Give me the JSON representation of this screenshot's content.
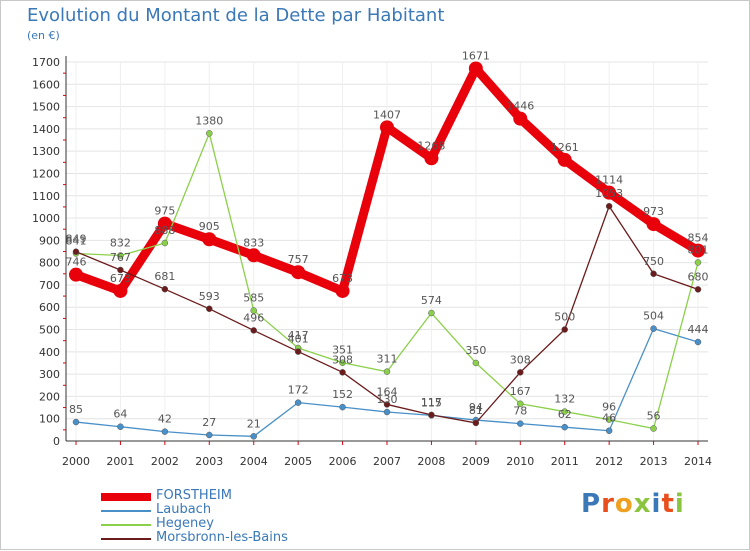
{
  "title": "Evolution du Montant de la Dette par Habitant",
  "unit": "(en €)",
  "logo": {
    "text": "Proxiti",
    "colors": [
      "#3a78b8",
      "#e94f1d",
      "#f0a020",
      "#8bc53f",
      "#3a78b8",
      "#e94f1d",
      "#8bc53f"
    ]
  },
  "chart_data": {
    "type": "line",
    "x": [
      "2000",
      "2001",
      "2002",
      "2003",
      "2004",
      "2005",
      "2006",
      "2007",
      "2008",
      "2009",
      "2010",
      "2011",
      "2012",
      "2013",
      "2014"
    ],
    "ylim": [
      0,
      1700
    ],
    "yticks": [
      0,
      100,
      200,
      300,
      400,
      500,
      600,
      700,
      800,
      900,
      1000,
      1100,
      1200,
      1300,
      1400,
      1500,
      1600,
      1700
    ],
    "grid": true,
    "legend": "bottom-left",
    "series": [
      {
        "name": "FORSTHEIM",
        "color": "#e8000b",
        "values": [
          746,
          673,
          975,
          905,
          833,
          757,
          673,
          1407,
          1268,
          1671,
          1446,
          1261,
          1114,
          973,
          854
        ]
      },
      {
        "name": "Laubach",
        "color": "#4a90c8",
        "values": [
          85,
          64,
          42,
          27,
          21,
          172,
          152,
          130,
          115,
          94,
          78,
          62,
          46,
          504,
          444
        ]
      },
      {
        "name": "Hegeney",
        "color": "#8bd04a",
        "values": [
          841,
          832,
          888,
          1380,
          585,
          417,
          351,
          311,
          574,
          350,
          167,
          132,
          96,
          56,
          801
        ]
      },
      {
        "name": "Morsbronn-les-Bains",
        "color": "#6b1b1b",
        "values": [
          849,
          767,
          681,
          593,
          496,
          401,
          308,
          164,
          117,
          81,
          308,
          500,
          1053,
          750,
          680
        ]
      }
    ]
  }
}
